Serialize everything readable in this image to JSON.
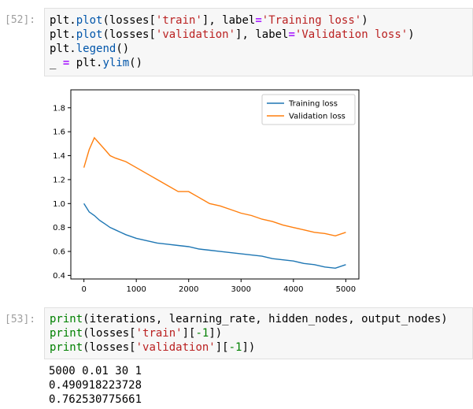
{
  "cell52": {
    "prompt": "[52]:",
    "lines": [
      [
        {
          "t": "plt",
          "c": ""
        },
        {
          "t": ".",
          "c": ""
        },
        {
          "t": "plot",
          "c": "fn"
        },
        {
          "t": "(losses[",
          "c": ""
        },
        {
          "t": "'train'",
          "c": "str"
        },
        {
          "t": "], label",
          "c": ""
        },
        {
          "t": "=",
          "c": "op"
        },
        {
          "t": "'Training loss'",
          "c": "str"
        },
        {
          "t": ")",
          "c": ""
        }
      ],
      [
        {
          "t": "plt",
          "c": ""
        },
        {
          "t": ".",
          "c": ""
        },
        {
          "t": "plot",
          "c": "fn"
        },
        {
          "t": "(losses[",
          "c": ""
        },
        {
          "t": "'validation'",
          "c": "str"
        },
        {
          "t": "], label",
          "c": ""
        },
        {
          "t": "=",
          "c": "op"
        },
        {
          "t": "'Validation loss'",
          "c": "str"
        },
        {
          "t": ")",
          "c": ""
        }
      ],
      [
        {
          "t": "plt",
          "c": ""
        },
        {
          "t": ".",
          "c": ""
        },
        {
          "t": "legend",
          "c": "fn"
        },
        {
          "t": "()",
          "c": ""
        }
      ],
      [
        {
          "t": "_ ",
          "c": ""
        },
        {
          "t": "=",
          "c": "op"
        },
        {
          "t": " plt",
          "c": ""
        },
        {
          "t": ".",
          "c": ""
        },
        {
          "t": "ylim",
          "c": "fn"
        },
        {
          "t": "()",
          "c": ""
        }
      ]
    ]
  },
  "chart_data": {
    "type": "line",
    "title": "",
    "xlabel": "",
    "ylabel": "",
    "xlim": [
      -250,
      5250
    ],
    "ylim": [
      0.37,
      1.95
    ],
    "xticks": [
      0,
      1000,
      2000,
      3000,
      4000,
      5000
    ],
    "yticks": [
      0.4,
      0.6,
      0.8,
      1.0,
      1.2,
      1.4,
      1.6,
      1.8
    ],
    "legend_position": "top-right",
    "series": [
      {
        "name": "Training loss",
        "color": "#1f77b4",
        "x": [
          0,
          100,
          200,
          300,
          400,
          500,
          600,
          700,
          800,
          1000,
          1200,
          1400,
          1600,
          1800,
          2000,
          2200,
          2400,
          2600,
          2800,
          3000,
          3200,
          3400,
          3600,
          3800,
          4000,
          4200,
          4400,
          4600,
          4800,
          5000
        ],
        "y": [
          1.0,
          0.93,
          0.9,
          0.86,
          0.83,
          0.8,
          0.78,
          0.76,
          0.74,
          0.71,
          0.69,
          0.67,
          0.66,
          0.65,
          0.64,
          0.62,
          0.61,
          0.6,
          0.59,
          0.58,
          0.57,
          0.56,
          0.54,
          0.53,
          0.52,
          0.5,
          0.49,
          0.47,
          0.46,
          0.49
        ]
      },
      {
        "name": "Validation loss",
        "color": "#ff7f0e",
        "x": [
          0,
          100,
          200,
          300,
          400,
          500,
          600,
          800,
          1000,
          1200,
          1400,
          1600,
          1800,
          2000,
          2200,
          2400,
          2600,
          2800,
          3000,
          3200,
          3400,
          3600,
          3800,
          4000,
          4200,
          4400,
          4600,
          4800,
          5000
        ],
        "y": [
          1.3,
          1.45,
          1.55,
          1.5,
          1.45,
          1.4,
          1.38,
          1.35,
          1.3,
          1.25,
          1.2,
          1.15,
          1.1,
          1.1,
          1.05,
          1.0,
          0.98,
          0.95,
          0.92,
          0.9,
          0.87,
          0.85,
          0.82,
          0.8,
          0.78,
          0.76,
          0.75,
          0.73,
          0.76
        ]
      }
    ]
  },
  "cell53": {
    "prompt": "[53]:",
    "lines": [
      [
        {
          "t": "print",
          "c": "kw-green"
        },
        {
          "t": "(iterations, learning_rate, hidden_nodes, output_nodes)",
          "c": ""
        }
      ],
      [
        {
          "t": "print",
          "c": "kw-green"
        },
        {
          "t": "(losses[",
          "c": ""
        },
        {
          "t": "'train'",
          "c": "str"
        },
        {
          "t": "][",
          "c": ""
        },
        {
          "t": "-1",
          "c": "num"
        },
        {
          "t": "])",
          "c": ""
        }
      ],
      [
        {
          "t": "print",
          "c": "kw-green"
        },
        {
          "t": "(losses[",
          "c": ""
        },
        {
          "t": "'validation'",
          "c": "str"
        },
        {
          "t": "][",
          "c": ""
        },
        {
          "t": "-1",
          "c": "num"
        },
        {
          "t": "])",
          "c": ""
        }
      ]
    ],
    "output": [
      "5000 0.01 30 1",
      "0.490918223728",
      "0.762530775661"
    ]
  }
}
